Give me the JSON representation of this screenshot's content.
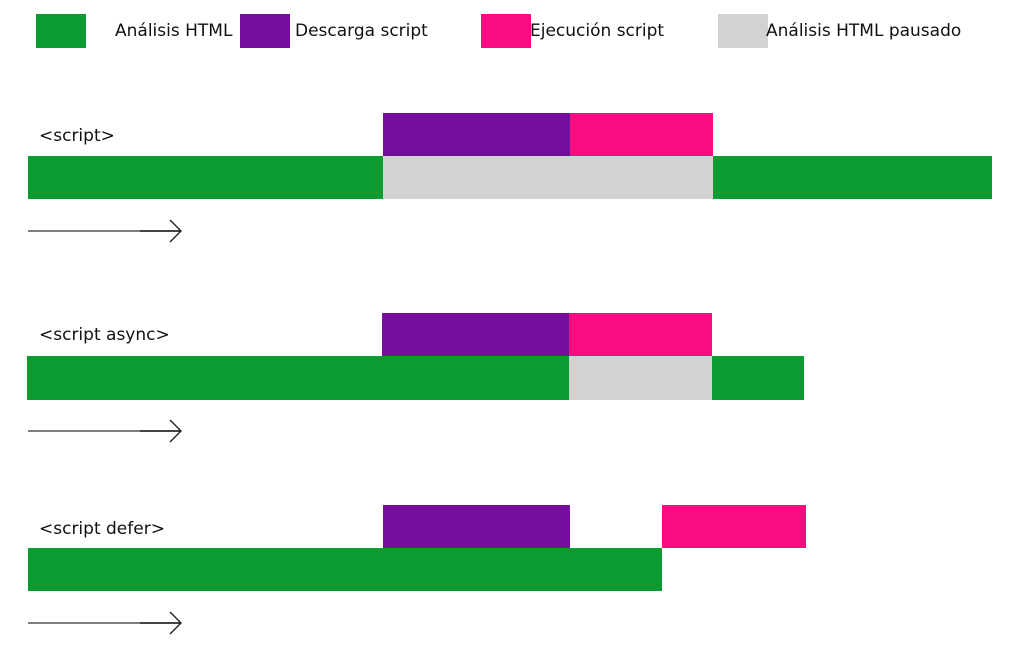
{
  "colors": {
    "parse": "#0c9b30",
    "download": "#750d9d",
    "execute": "#f70d80",
    "paused": "#d2d2d2"
  },
  "legend": [
    {
      "label": "Análisis HTML",
      "key": "parse"
    },
    {
      "label": "Descarga script",
      "key": "download"
    },
    {
      "label": "Ejecución script",
      "key": "execute"
    },
    {
      "label": "Análisis HTML pausado",
      "key": "paused"
    }
  ],
  "timelines": [
    {
      "label": "<script>"
    },
    {
      "label": "<script async>"
    },
    {
      "label": "<script defer>"
    }
  ]
}
